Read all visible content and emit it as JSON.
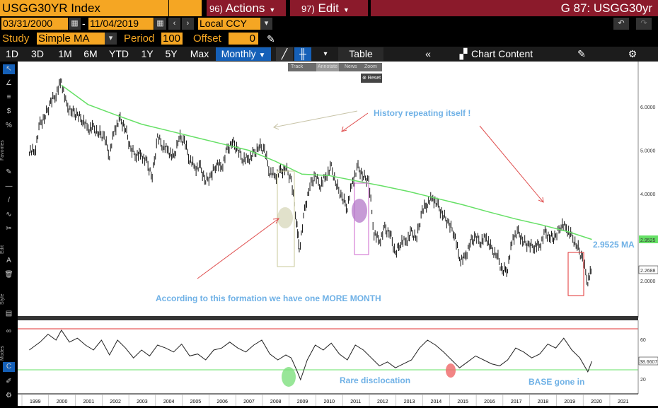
{
  "header": {
    "ticker": "USGG30YR Index",
    "actions_num": "96)",
    "actions_label": "Actions",
    "edit_num": "97)",
    "edit_label": "Edit",
    "graph_title": "G 87: USGG30yr"
  },
  "range": {
    "start": "03/31/2000",
    "separator": "-",
    "end": "11/04/2019",
    "currency": "Local CCY"
  },
  "study": {
    "study_label": "Study",
    "study_value": "Simple MA",
    "period_label": "Period",
    "period_value": "100",
    "offset_label": "Offset",
    "offset_value": "0"
  },
  "toolbar": {
    "periods": [
      "1D",
      "3D",
      "1M",
      "6M",
      "YTD",
      "1Y",
      "5Y",
      "Max"
    ],
    "frequency": "Monthly",
    "table": "Table",
    "chart_content": "Chart Content"
  },
  "floating": {
    "items": [
      "Track",
      "Annotate",
      "News",
      "Zoom"
    ],
    "reset": "Reset"
  },
  "side_labels": [
    "Favorites",
    "Edit",
    "Style",
    "Modes"
  ],
  "chart_data": {
    "type": "line",
    "price_axis": {
      "ticks": [
        "6.0000",
        "5.0000",
        "4.0000",
        "2.0000"
      ],
      "ylim": [
        1.2,
        6.9
      ]
    },
    "osc_axis": {
      "ticks": [
        "60",
        "20"
      ]
    },
    "x_ticks": [
      "1999",
      "2000",
      "2001",
      "2002",
      "2003",
      "2004",
      "2005",
      "2006",
      "2007",
      "2008",
      "2009",
      "2010",
      "2011",
      "2012",
      "2013",
      "2014",
      "2015",
      "2016",
      "2017",
      "2018",
      "2019",
      "2020",
      "2021"
    ],
    "price_series": [
      [
        1998.8,
        5.0
      ],
      [
        1999.0,
        4.95
      ],
      [
        1999.2,
        5.6
      ],
      [
        1999.4,
        5.8
      ],
      [
        1999.6,
        6.1
      ],
      [
        1999.8,
        6.3
      ],
      [
        2000.0,
        6.6
      ],
      [
        2000.2,
        6.0
      ],
      [
        2000.4,
        5.9
      ],
      [
        2000.6,
        5.8
      ],
      [
        2000.8,
        5.7
      ],
      [
        2001.0,
        5.5
      ],
      [
        2001.2,
        5.5
      ],
      [
        2001.4,
        5.4
      ],
      [
        2001.6,
        5.3
      ],
      [
        2001.8,
        4.9
      ],
      [
        2002.0,
        5.5
      ],
      [
        2002.2,
        5.7
      ],
      [
        2002.4,
        5.5
      ],
      [
        2002.6,
        5.0
      ],
      [
        2002.8,
        4.9
      ],
      [
        2003.0,
        4.9
      ],
      [
        2003.2,
        4.7
      ],
      [
        2003.4,
        4.4
      ],
      [
        2003.6,
        5.3
      ],
      [
        2003.8,
        5.1
      ],
      [
        2004.0,
        5.0
      ],
      [
        2004.2,
        4.8
      ],
      [
        2004.4,
        5.3
      ],
      [
        2004.6,
        5.2
      ],
      [
        2004.8,
        4.8
      ],
      [
        2005.0,
        4.6
      ],
      [
        2005.2,
        4.6
      ],
      [
        2005.4,
        4.3
      ],
      [
        2005.6,
        4.4
      ],
      [
        2005.8,
        4.7
      ],
      [
        2006.0,
        4.6
      ],
      [
        2006.2,
        5.0
      ],
      [
        2006.4,
        5.2
      ],
      [
        2006.6,
        5.0
      ],
      [
        2006.8,
        4.8
      ],
      [
        2007.0,
        4.8
      ],
      [
        2007.2,
        4.9
      ],
      [
        2007.4,
        5.1
      ],
      [
        2007.6,
        5.0
      ],
      [
        2007.8,
        4.5
      ],
      [
        2008.0,
        4.4
      ],
      [
        2008.2,
        4.5
      ],
      [
        2008.4,
        4.6
      ],
      [
        2008.6,
        4.3
      ],
      [
        2008.8,
        3.4
      ],
      [
        2008.9,
        2.7
      ],
      [
        2009.1,
        3.6
      ],
      [
        2009.3,
        4.2
      ],
      [
        2009.5,
        4.4
      ],
      [
        2009.7,
        4.2
      ],
      [
        2009.9,
        4.4
      ],
      [
        2010.1,
        4.6
      ],
      [
        2010.3,
        4.2
      ],
      [
        2010.5,
        3.9
      ],
      [
        2010.7,
        3.7
      ],
      [
        2010.9,
        4.3
      ],
      [
        2011.1,
        4.6
      ],
      [
        2011.3,
        4.4
      ],
      [
        2011.5,
        4.3
      ],
      [
        2011.7,
        3.1
      ],
      [
        2011.9,
        2.9
      ],
      [
        2012.1,
        3.2
      ],
      [
        2012.3,
        3.1
      ],
      [
        2012.5,
        2.6
      ],
      [
        2012.7,
        2.9
      ],
      [
        2012.9,
        2.9
      ],
      [
        2013.1,
        3.1
      ],
      [
        2013.3,
        3.0
      ],
      [
        2013.5,
        3.6
      ],
      [
        2013.7,
        3.8
      ],
      [
        2013.9,
        3.9
      ],
      [
        2014.1,
        3.7
      ],
      [
        2014.3,
        3.5
      ],
      [
        2014.5,
        3.3
      ],
      [
        2014.7,
        3.1
      ],
      [
        2014.9,
        2.5
      ],
      [
        2015.1,
        2.5
      ],
      [
        2015.3,
        2.9
      ],
      [
        2015.5,
        3.0
      ],
      [
        2015.7,
        2.9
      ],
      [
        2015.9,
        3.0
      ],
      [
        2016.1,
        2.7
      ],
      [
        2016.3,
        2.6
      ],
      [
        2016.5,
        2.2
      ],
      [
        2016.7,
        2.3
      ],
      [
        2016.9,
        3.0
      ],
      [
        2017.1,
        3.1
      ],
      [
        2017.3,
        2.9
      ],
      [
        2017.5,
        2.8
      ],
      [
        2017.7,
        2.8
      ],
      [
        2017.9,
        2.8
      ],
      [
        2018.1,
        3.1
      ],
      [
        2018.3,
        3.0
      ],
      [
        2018.5,
        3.0
      ],
      [
        2018.7,
        3.3
      ],
      [
        2018.9,
        3.2
      ],
      [
        2019.1,
        3.0
      ],
      [
        2019.3,
        2.8
      ],
      [
        2019.5,
        2.5
      ],
      [
        2019.7,
        2.0
      ],
      [
        2019.85,
        2.27
      ]
    ],
    "ma_series": [
      [
        2000.0,
        6.5
      ],
      [
        2001.0,
        6.05
      ],
      [
        2002.0,
        5.82
      ],
      [
        2003.0,
        5.6
      ],
      [
        2004.0,
        5.45
      ],
      [
        2005.0,
        5.3
      ],
      [
        2006.0,
        5.15
      ],
      [
        2007.0,
        5.0
      ],
      [
        2008.0,
        4.75
      ],
      [
        2009.0,
        4.45
      ],
      [
        2010.0,
        4.42
      ],
      [
        2011.0,
        4.3
      ],
      [
        2012.0,
        4.18
      ],
      [
        2013.0,
        4.05
      ],
      [
        2014.0,
        3.9
      ],
      [
        2015.0,
        3.75
      ],
      [
        2016.0,
        3.58
      ],
      [
        2017.0,
        3.42
      ],
      [
        2018.0,
        3.28
      ],
      [
        2019.0,
        3.12
      ],
      [
        2019.85,
        2.95
      ]
    ],
    "osc_series": [
      [
        1998.8,
        50
      ],
      [
        1999.2,
        58
      ],
      [
        1999.5,
        66
      ],
      [
        1999.8,
        60
      ],
      [
        2000.0,
        70
      ],
      [
        2000.3,
        58
      ],
      [
        2000.6,
        62
      ],
      [
        2000.9,
        55
      ],
      [
        2001.2,
        50
      ],
      [
        2001.5,
        60
      ],
      [
        2001.8,
        45
      ],
      [
        2002.1,
        60
      ],
      [
        2002.4,
        52
      ],
      [
        2002.7,
        42
      ],
      [
        2003.0,
        50
      ],
      [
        2003.3,
        44
      ],
      [
        2003.6,
        55
      ],
      [
        2003.9,
        52
      ],
      [
        2004.2,
        48
      ],
      [
        2004.5,
        56
      ],
      [
        2004.8,
        44
      ],
      [
        2005.1,
        46
      ],
      [
        2005.4,
        40
      ],
      [
        2005.7,
        50
      ],
      [
        2006.0,
        52
      ],
      [
        2006.3,
        58
      ],
      [
        2006.6,
        52
      ],
      [
        2006.9,
        48
      ],
      [
        2007.2,
        55
      ],
      [
        2007.5,
        60
      ],
      [
        2007.8,
        46
      ],
      [
        2008.1,
        40
      ],
      [
        2008.4,
        45
      ],
      [
        2008.6,
        42
      ],
      [
        2008.8,
        30
      ],
      [
        2008.95,
        20
      ],
      [
        2009.2,
        40
      ],
      [
        2009.5,
        55
      ],
      [
        2009.8,
        50
      ],
      [
        2010.1,
        57
      ],
      [
        2010.4,
        46
      ],
      [
        2010.7,
        40
      ],
      [
        2011.0,
        55
      ],
      [
        2011.3,
        50
      ],
      [
        2011.6,
        42
      ],
      [
        2011.9,
        34
      ],
      [
        2012.2,
        38
      ],
      [
        2012.5,
        32
      ],
      [
        2012.8,
        36
      ],
      [
        2013.1,
        40
      ],
      [
        2013.4,
        52
      ],
      [
        2013.7,
        60
      ],
      [
        2014.0,
        55
      ],
      [
        2014.3,
        48
      ],
      [
        2014.6,
        40
      ],
      [
        2014.9,
        32
      ],
      [
        2015.2,
        38
      ],
      [
        2015.5,
        44
      ],
      [
        2015.8,
        40
      ],
      [
        2016.1,
        36
      ],
      [
        2016.4,
        34
      ],
      [
        2016.7,
        40
      ],
      [
        2017.0,
        52
      ],
      [
        2017.3,
        48
      ],
      [
        2017.6,
        42
      ],
      [
        2017.9,
        46
      ],
      [
        2018.2,
        56
      ],
      [
        2018.5,
        52
      ],
      [
        2018.8,
        62
      ],
      [
        2019.1,
        50
      ],
      [
        2019.4,
        42
      ],
      [
        2019.7,
        28
      ],
      [
        2019.85,
        38.66
      ]
    ],
    "last_price": "2.2688",
    "ma_value": "2.9525",
    "osc_last": "38.6607",
    "ma_label": "2.9525 MA"
  },
  "annotations": {
    "history": "History repeating itself !",
    "formation": "According to this formation we have one MORE MONTH",
    "rare": "Rare disclocation",
    "base": "BASE gone in"
  },
  "colors": {
    "orange": "#f5a623",
    "header_red": "#8b1a2b",
    "ma_green": "#66e066",
    "osc_red": "#e03030",
    "annotation_blue": "#6fb1e6",
    "monthly_blue": "#1560b8"
  }
}
